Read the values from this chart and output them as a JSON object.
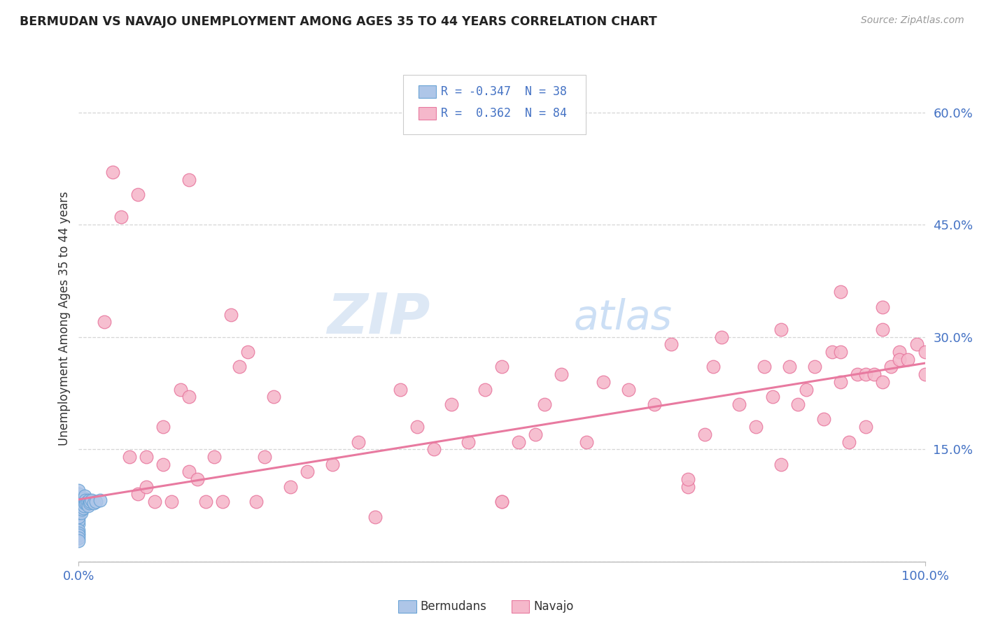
{
  "title": "BERMUDAN VS NAVAJO UNEMPLOYMENT AMONG AGES 35 TO 44 YEARS CORRELATION CHART",
  "source": "Source: ZipAtlas.com",
  "ylabel": "Unemployment Among Ages 35 to 44 years",
  "xlim": [
    0,
    1.0
  ],
  "ylim": [
    0,
    0.65
  ],
  "ytick_positions": [
    0.0,
    0.15,
    0.3,
    0.45,
    0.6
  ],
  "ytick_labels": [
    "",
    "15.0%",
    "30.0%",
    "45.0%",
    "60.0%"
  ],
  "legend_bermudan_R": "-0.347",
  "legend_bermudan_N": "38",
  "legend_navajo_R": "0.362",
  "legend_navajo_N": "84",
  "bermudan_color": "#aec6e8",
  "bermudan_edge_color": "#6aa3d5",
  "navajo_color": "#f5b8cb",
  "navajo_edge_color": "#e87aa0",
  "trend_navajo_color": "#e87aa0",
  "background_color": "#ffffff",
  "navajo_trend_x0": 0.0,
  "navajo_trend_y0": 0.083,
  "navajo_trend_x1": 1.0,
  "navajo_trend_y1": 0.265,
  "navajo_points_x": [
    0.03,
    0.05,
    0.06,
    0.07,
    0.08,
    0.08,
    0.09,
    0.1,
    0.1,
    0.11,
    0.12,
    0.13,
    0.13,
    0.14,
    0.15,
    0.16,
    0.17,
    0.18,
    0.19,
    0.2,
    0.21,
    0.22,
    0.23,
    0.25,
    0.27,
    0.3,
    0.33,
    0.35,
    0.38,
    0.4,
    0.42,
    0.44,
    0.46,
    0.48,
    0.5,
    0.5,
    0.52,
    0.54,
    0.55,
    0.57,
    0.6,
    0.62,
    0.65,
    0.68,
    0.7,
    0.72,
    0.74,
    0.75,
    0.76,
    0.78,
    0.8,
    0.81,
    0.82,
    0.83,
    0.84,
    0.85,
    0.86,
    0.87,
    0.88,
    0.89,
    0.9,
    0.9,
    0.91,
    0.92,
    0.93,
    0.93,
    0.94,
    0.95,
    0.95,
    0.96,
    0.97,
    0.97,
    0.98,
    0.99,
    1.0,
    1.0,
    0.04,
    0.07,
    0.13,
    0.5,
    0.72,
    0.83,
    0.9,
    0.95
  ],
  "navajo_points_y": [
    0.32,
    0.46,
    0.14,
    0.09,
    0.1,
    0.14,
    0.08,
    0.13,
    0.18,
    0.08,
    0.23,
    0.22,
    0.12,
    0.11,
    0.08,
    0.14,
    0.08,
    0.33,
    0.26,
    0.28,
    0.08,
    0.14,
    0.22,
    0.1,
    0.12,
    0.13,
    0.16,
    0.06,
    0.23,
    0.18,
    0.15,
    0.21,
    0.16,
    0.23,
    0.08,
    0.26,
    0.16,
    0.17,
    0.21,
    0.25,
    0.16,
    0.24,
    0.23,
    0.21,
    0.29,
    0.1,
    0.17,
    0.26,
    0.3,
    0.21,
    0.18,
    0.26,
    0.22,
    0.13,
    0.26,
    0.21,
    0.23,
    0.26,
    0.19,
    0.28,
    0.24,
    0.28,
    0.16,
    0.25,
    0.18,
    0.25,
    0.25,
    0.24,
    0.31,
    0.26,
    0.28,
    0.27,
    0.27,
    0.29,
    0.25,
    0.28,
    0.52,
    0.49,
    0.51,
    0.08,
    0.11,
    0.31,
    0.36,
    0.34
  ],
  "bermudan_points_x": [
    0.0,
    0.0,
    0.0,
    0.0,
    0.0,
    0.0,
    0.0,
    0.0,
    0.0,
    0.0,
    0.0,
    0.0,
    0.0,
    0.0,
    0.0,
    0.002,
    0.002,
    0.003,
    0.003,
    0.004,
    0.004,
    0.005,
    0.005,
    0.006,
    0.006,
    0.007,
    0.007,
    0.008,
    0.009,
    0.01,
    0.011,
    0.012,
    0.013,
    0.014,
    0.015,
    0.018,
    0.02,
    0.025
  ],
  "bermudan_points_y": [
    0.05,
    0.055,
    0.06,
    0.065,
    0.07,
    0.075,
    0.08,
    0.085,
    0.09,
    0.042,
    0.095,
    0.038,
    0.035,
    0.032,
    0.028,
    0.068,
    0.075,
    0.065,
    0.078,
    0.07,
    0.08,
    0.072,
    0.082,
    0.075,
    0.085,
    0.078,
    0.088,
    0.082,
    0.078,
    0.08,
    0.075,
    0.082,
    0.078,
    0.08,
    0.082,
    0.078,
    0.08,
    0.082
  ]
}
